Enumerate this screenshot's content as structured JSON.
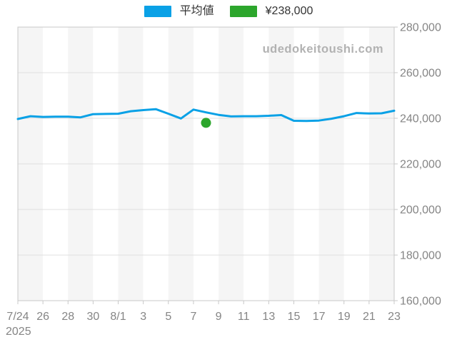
{
  "page": {
    "background": "#ffffff"
  },
  "legend": {
    "items": [
      {
        "label": "平均値",
        "color": "#0aa1e6",
        "kind": "series-average"
      },
      {
        "label": "¥238,000",
        "color": "#2ca62c",
        "kind": "marker-price"
      }
    ]
  },
  "watermark": {
    "text": "udedokeitoushi.com",
    "color": "#b2b2b2"
  },
  "chart_data": {
    "type": "line",
    "title": "",
    "x_axis": {
      "year_label": "2025",
      "tick_labels": [
        "7/24",
        "26",
        "28",
        "30",
        "8/1",
        "3",
        "5",
        "7",
        "9",
        "11",
        "13",
        "15",
        "17",
        "19",
        "21",
        "23"
      ],
      "tick_every_days": 2,
      "band_days": 2
    },
    "y_axis": {
      "min": 160000,
      "max": 280000,
      "step": 20000,
      "tick_labels": [
        "160,000",
        "180,000",
        "200,000",
        "220,000",
        "240,000",
        "260,000",
        "280,000"
      ]
    },
    "dates": [
      "7/24",
      "7/25",
      "7/26",
      "7/27",
      "7/28",
      "7/29",
      "7/30",
      "7/31",
      "8/1",
      "8/2",
      "8/3",
      "8/4",
      "8/5",
      "8/6",
      "8/7",
      "8/8",
      "8/9",
      "8/10",
      "8/11",
      "8/12",
      "8/13",
      "8/14",
      "8/15",
      "8/16",
      "8/17",
      "8/18",
      "8/19",
      "8/20",
      "8/21",
      "8/22",
      "8/23"
    ],
    "series": [
      {
        "name": "平均値",
        "color": "#0aa1e6",
        "values": [
          239700,
          240900,
          240600,
          240700,
          240700,
          240400,
          241800,
          241900,
          242000,
          243100,
          243600,
          244000,
          242000,
          239900,
          243800,
          242600,
          241500,
          240800,
          240900,
          240900,
          241100,
          241400,
          238900,
          238800,
          239000,
          239800,
          240900,
          242300,
          242100,
          242200,
          243300
        ]
      }
    ],
    "marker_point": {
      "label": "¥238,000",
      "date": "8/8",
      "day_index": 15,
      "value": 238000,
      "color": "#2ca62c"
    },
    "style": {
      "band_colors": [
        "#f5f5f5",
        "#ffffff"
      ],
      "grid_line_color": "#e0e0e0",
      "border_color": "#c8c8c8",
      "tick_color": "#c8c8c8",
      "axis_label_color": "#858585",
      "line_width": 3,
      "marker_radius": 7
    }
  }
}
